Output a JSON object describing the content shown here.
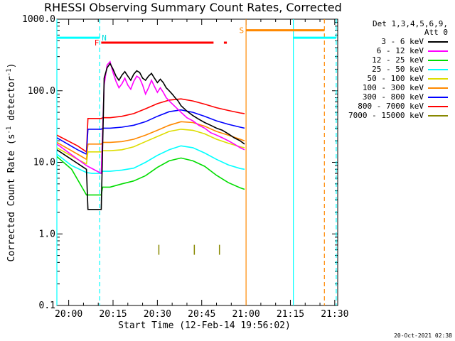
{
  "chart_data": {
    "type": "line",
    "title": "RHESSI Observing Summary Count Rates, Corrected",
    "xlabel": "Start Time (12-Feb-14 19:56:02)",
    "ylabel_main": "Corrected Count Rate (s",
    "ylabel_sup1": "-1",
    "ylabel_mid": " detector",
    "ylabel_sup2": "-1",
    "ylabel_end": ")",
    "y_scale": "log",
    "ylim": [
      0.1,
      1000
    ],
    "xlim_minutes": [
      0,
      95
    ],
    "yticks": [
      "0.1",
      "1.0",
      "10.0",
      "100.0",
      "1000.0"
    ],
    "xticks": [
      {
        "label": "20:00",
        "min": 4
      },
      {
        "label": "20:15",
        "min": 19
      },
      {
        "label": "20:30",
        "min": 34
      },
      {
        "label": "20:45",
        "min": 49
      },
      {
        "label": "21:00",
        "min": 64
      },
      {
        "label": "21:15",
        "min": 79
      },
      {
        "label": "21:30",
        "min": 94
      }
    ],
    "legend_header_1": "Det 1,3,4,5,6,9,",
    "legend_header_2": "Att 0",
    "series": [
      {
        "name": "3 - 6 keV",
        "color": "#000000",
        "x": [
          0,
          10,
          10.5,
          15,
          16,
          17,
          18,
          19,
          20,
          21,
          22,
          23,
          24,
          25,
          26,
          27,
          28,
          29,
          30,
          31,
          32,
          33,
          34,
          35,
          36,
          37,
          38,
          39,
          40,
          41,
          42,
          44,
          46,
          48,
          50,
          52,
          54,
          56,
          58,
          60,
          62,
          63.5
        ],
        "y": [
          15,
          8,
          2.2,
          2.2,
          150,
          210,
          240,
          200,
          160,
          140,
          165,
          185,
          160,
          140,
          170,
          190,
          180,
          150,
          140,
          160,
          175,
          150,
          130,
          145,
          130,
          110,
          100,
          90,
          80,
          72,
          62,
          52,
          45,
          40,
          36,
          33,
          30,
          28,
          25,
          22,
          20,
          18
        ]
      },
      {
        "name": "6 - 12 keV",
        "color": "#ff00ff",
        "x": [
          0,
          10,
          15,
          16,
          17,
          18,
          19,
          20,
          21,
          22,
          23,
          24,
          25,
          26,
          27,
          28,
          29,
          30,
          31,
          32,
          33,
          34,
          35,
          36,
          37,
          38,
          40,
          42,
          44,
          46,
          48,
          50,
          52,
          54,
          56,
          58,
          60,
          62,
          63.5
        ],
        "y": [
          18,
          9,
          7,
          120,
          230,
          255,
          180,
          135,
          110,
          125,
          150,
          120,
          105,
          135,
          160,
          150,
          120,
          90,
          110,
          140,
          115,
          95,
          110,
          95,
          80,
          72,
          60,
          50,
          42,
          38,
          33,
          30,
          26,
          24,
          22,
          20,
          18,
          16,
          15
        ]
      },
      {
        "name": "12 - 25 keV",
        "color": "#00dd00",
        "x": [
          0,
          5,
          10,
          12,
          15,
          15.5,
          18,
          22,
          26,
          30,
          34,
          38,
          42,
          46,
          50,
          54,
          58,
          62,
          63.5
        ],
        "y": [
          12,
          8,
          3.5,
          3.5,
          3.5,
          4.5,
          4.5,
          5.0,
          5.5,
          6.5,
          8.5,
          10.5,
          11.5,
          10.5,
          8.8,
          6.6,
          5.2,
          4.4,
          4.2
        ]
      },
      {
        "name": "25 - 50 keV",
        "color": "#00ffff",
        "x": [
          0,
          5,
          10,
          12,
          15,
          15.5,
          18,
          22,
          26,
          30,
          34,
          38,
          42,
          46,
          50,
          54,
          58,
          62,
          63.5
        ],
        "y": [
          13,
          9,
          7.2,
          7.0,
          7.0,
          7.5,
          7.5,
          7.8,
          8.3,
          10,
          12.5,
          15,
          17,
          16,
          13.5,
          11,
          9.2,
          8.2,
          8.0
        ]
      },
      {
        "name": "50 - 100 keV",
        "color": "#dddd00",
        "x": [
          0,
          7,
          10,
          10.5,
          15,
          15.5,
          18,
          22,
          26,
          30,
          34,
          38,
          42,
          46,
          50,
          54,
          58,
          62,
          63.5
        ],
        "y": [
          16,
          11,
          9.5,
          14,
          14,
          14.5,
          14.5,
          15,
          16.5,
          19.5,
          23,
          27,
          29,
          28,
          25,
          21,
          18.5,
          16.5,
          16
        ]
      },
      {
        "name": "100 - 300 keV",
        "color": "#ff8800",
        "x": [
          0,
          7,
          10,
          10.5,
          15,
          15.5,
          18,
          22,
          26,
          30,
          34,
          38,
          42,
          46,
          50,
          54,
          58,
          62,
          63.5
        ],
        "y": [
          19,
          13,
          11,
          18,
          18,
          19,
          19,
          19.5,
          21,
          24,
          28,
          33,
          37,
          36,
          32,
          27,
          24,
          21,
          20
        ]
      },
      {
        "name": "300 - 800 keV",
        "color": "#0000ff",
        "x": [
          0,
          7,
          10,
          10.5,
          15,
          15.5,
          18,
          22,
          26,
          30,
          34,
          38,
          42,
          46,
          50,
          54,
          58,
          62,
          63.5
        ],
        "y": [
          22,
          15,
          13,
          29,
          29,
          30,
          30,
          31,
          33,
          37,
          44,
          51,
          54,
          50,
          44,
          38,
          34,
          31,
          30
        ]
      },
      {
        "name": "800 - 7000 keV",
        "color": "#ff0000",
        "x": [
          0,
          7,
          10,
          10.5,
          15,
          15.5,
          18,
          22,
          26,
          30,
          34,
          38,
          42,
          46,
          50,
          54,
          58,
          62,
          63.5
        ],
        "y": [
          24,
          17,
          14,
          41,
          41,
          42,
          42,
          44,
          48,
          56,
          66,
          74,
          77,
          72,
          65,
          58,
          53,
          49,
          48
        ]
      },
      {
        "name": "7000 - 15000 keV",
        "color": "#888800",
        "x": [],
        "y": []
      }
    ],
    "annotations": {
      "flag_N_label": "N",
      "flag_F_label": "F",
      "flag_S_label": "S",
      "cyan_bars": [
        {
          "x0": 0,
          "x1": 14.5,
          "y": 550
        },
        {
          "x0": 80,
          "x1": 94.5,
          "y": 550
        }
      ],
      "red_bars": [
        {
          "x0": 15,
          "x1": 53,
          "y": 470
        },
        {
          "x0": 56.5,
          "x1": 57.5,
          "y": 470
        }
      ],
      "orange_bars": [
        {
          "x0": 64,
          "x1": 90.5,
          "y": 700
        }
      ],
      "olive_ticks": [
        {
          "x": 34.5,
          "y": 0.6
        },
        {
          "x": 46.5,
          "y": 0.6
        },
        {
          "x": 55,
          "y": 0.6
        }
      ],
      "cyan_vlines_solid": [
        0,
        80
      ],
      "cyan_vlines_dashed": [
        14.5,
        94.5
      ],
      "orange_vline_solid": 64,
      "orange_vline_dashed": 90.5
    },
    "grid": false,
    "legend_position": "right"
  },
  "colors": {
    "cyan": "#00ffff",
    "red": "#ff0000",
    "orange": "#ff8800",
    "olive": "#888800"
  },
  "timestamp": "20-Oct-2021 02:38"
}
